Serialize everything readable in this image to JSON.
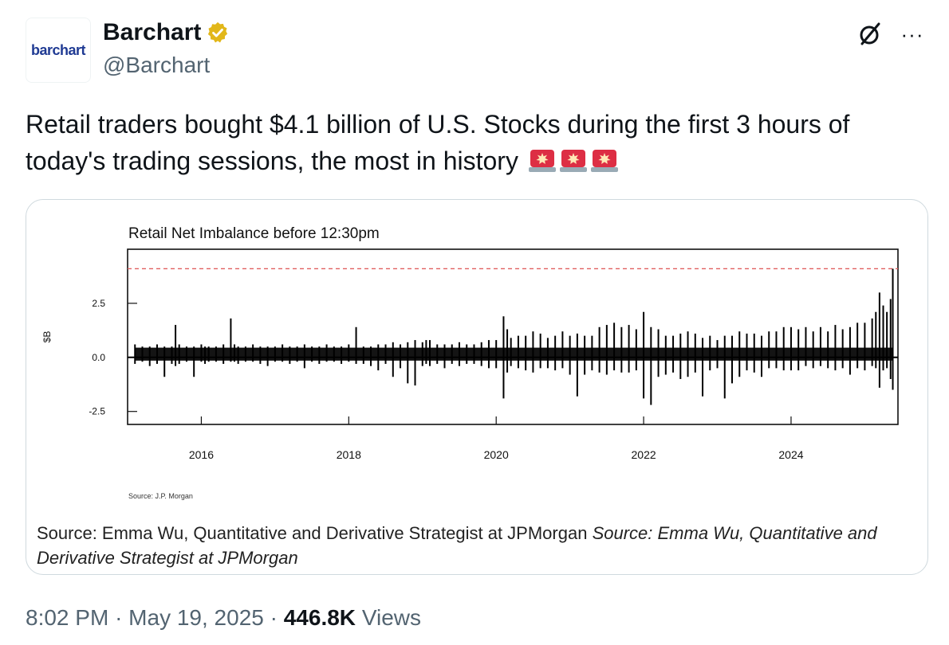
{
  "author": {
    "avatar_text": "barchart",
    "display_name": "Barchart",
    "handle": "@Barchart",
    "verified_badge_icon": "verified-gold-badge-icon",
    "verified_color": "#e2b719"
  },
  "actions": {
    "grok_icon": "grok-icon",
    "more_icon": "more-icon",
    "more_label": "···"
  },
  "tweet": {
    "text": "Retail traders bought $4.1 billion of U.S. Stocks during the first 3 hours of today's trading sessions, the most in history",
    "emoji_icon": "police-siren-emoji-icon",
    "emoji_count": 3
  },
  "media": {
    "caption_plain": "Source: Emma Wu, Quantitative and Derivative Strategist at JPMorgan ",
    "caption_italic": "Source: Emma Wu, Quantitative and Derivative Strategist at JPMorgan"
  },
  "chart_data": {
    "type": "bar",
    "title": "Retail Net Imbalance before 12:30pm",
    "ylabel": "$B",
    "xlabel": "",
    "source_note": "Source: J.P. Morgan",
    "xlim": [
      2015.0,
      2025.45
    ],
    "ylim": [
      -3.1,
      5.0
    ],
    "x_ticks": [
      2016,
      2018,
      2020,
      2022,
      2024
    ],
    "x_tick_labels": [
      "2016",
      "2018",
      "2020",
      "2022",
      "2024"
    ],
    "y_ticks": [
      -2.5,
      0.0,
      2.5
    ],
    "y_tick_labels": [
      "-2.5",
      "0.0",
      "2.5"
    ],
    "reference_line": {
      "value": 4.1,
      "style": "dashed",
      "color": "#e06060"
    },
    "baseline": 0.0,
    "grid": false,
    "series": [
      {
        "color": "#000000",
        "x": [
          2015.1,
          2015.2,
          2015.3,
          2015.4,
          2015.5,
          2015.6,
          2015.65,
          2015.7,
          2015.8,
          2015.9,
          2016.0,
          2016.05,
          2016.1,
          2016.2,
          2016.3,
          2016.4,
          2016.45,
          2016.5,
          2016.6,
          2016.7,
          2016.8,
          2016.9,
          2017.0,
          2017.1,
          2017.2,
          2017.3,
          2017.4,
          2017.5,
          2017.6,
          2017.7,
          2017.8,
          2017.9,
          2018.0,
          2018.1,
          2018.2,
          2018.3,
          2018.4,
          2018.5,
          2018.6,
          2018.7,
          2018.8,
          2018.9,
          2019.0,
          2019.05,
          2019.1,
          2019.2,
          2019.3,
          2019.4,
          2019.5,
          2019.6,
          2019.7,
          2019.8,
          2019.9,
          2020.0,
          2020.1,
          2020.15,
          2020.2,
          2020.3,
          2020.4,
          2020.5,
          2020.6,
          2020.7,
          2020.8,
          2020.9,
          2021.0,
          2021.1,
          2021.2,
          2021.3,
          2021.4,
          2021.5,
          2021.6,
          2021.7,
          2021.8,
          2021.9,
          2022.0,
          2022.1,
          2022.2,
          2022.3,
          2022.4,
          2022.5,
          2022.6,
          2022.7,
          2022.8,
          2022.9,
          2023.0,
          2023.1,
          2023.2,
          2023.3,
          2023.4,
          2023.5,
          2023.6,
          2023.7,
          2023.8,
          2023.9,
          2024.0,
          2024.1,
          2024.2,
          2024.3,
          2024.4,
          2024.5,
          2024.6,
          2024.7,
          2024.8,
          2024.9,
          2025.0,
          2025.1,
          2025.15,
          2025.2,
          2025.25,
          2025.3,
          2025.35,
          2025.38
        ],
        "high": [
          0.6,
          0.5,
          0.5,
          0.6,
          0.5,
          0.5,
          1.5,
          0.6,
          0.5,
          0.5,
          0.6,
          0.5,
          0.5,
          0.5,
          0.6,
          1.8,
          0.6,
          0.5,
          0.5,
          0.6,
          0.5,
          0.5,
          0.5,
          0.6,
          0.5,
          0.5,
          0.6,
          0.5,
          0.5,
          0.6,
          0.5,
          0.5,
          0.6,
          1.4,
          0.5,
          0.5,
          0.6,
          0.6,
          0.7,
          0.6,
          0.7,
          0.8,
          0.7,
          0.8,
          0.8,
          0.6,
          0.6,
          0.6,
          0.7,
          0.6,
          0.6,
          0.7,
          0.8,
          0.8,
          1.9,
          1.3,
          0.9,
          1.0,
          1.0,
          1.2,
          1.1,
          0.9,
          1.0,
          1.2,
          1.0,
          1.1,
          1.0,
          1.0,
          1.4,
          1.5,
          1.6,
          1.4,
          1.5,
          1.3,
          2.1,
          1.4,
          1.3,
          1.0,
          1.0,
          1.1,
          1.2,
          1.1,
          0.9,
          1.0,
          0.8,
          1.0,
          1.0,
          1.2,
          1.1,
          1.1,
          1.0,
          1.2,
          1.2,
          1.4,
          1.4,
          1.3,
          1.4,
          1.2,
          1.4,
          1.2,
          1.5,
          1.3,
          1.4,
          1.6,
          1.6,
          1.8,
          2.1,
          3.0,
          2.4,
          2.1,
          2.7,
          4.1
        ],
        "low": [
          -0.3,
          -0.2,
          -0.4,
          -0.3,
          -0.9,
          -0.3,
          -0.4,
          -0.3,
          -0.2,
          -0.9,
          -0.2,
          -0.3,
          -0.2,
          -0.2,
          -0.3,
          -0.2,
          -0.2,
          -0.3,
          -0.2,
          -0.2,
          -0.3,
          -0.4,
          -0.2,
          -0.2,
          -0.3,
          -0.2,
          -0.5,
          -0.2,
          -0.3,
          -0.2,
          -0.2,
          -0.3,
          -0.2,
          -0.3,
          -0.3,
          -0.4,
          -0.6,
          -0.3,
          -0.9,
          -0.5,
          -1.2,
          -1.3,
          -0.4,
          -0.3,
          -0.4,
          -0.3,
          -0.5,
          -0.3,
          -0.4,
          -0.3,
          -0.3,
          -0.4,
          -0.5,
          -0.5,
          -1.9,
          -0.7,
          -0.4,
          -0.5,
          -0.6,
          -0.7,
          -0.5,
          -0.5,
          -0.6,
          -0.5,
          -0.8,
          -1.8,
          -0.8,
          -0.6,
          -0.7,
          -0.8,
          -0.6,
          -0.7,
          -0.7,
          -0.6,
          -1.9,
          -2.2,
          -0.9,
          -0.8,
          -0.7,
          -1.0,
          -0.9,
          -0.7,
          -1.8,
          -0.6,
          -0.5,
          -1.9,
          -1.2,
          -0.9,
          -0.6,
          -0.7,
          -0.9,
          -0.5,
          -0.5,
          -0.6,
          -0.6,
          -0.6,
          -0.4,
          -0.5,
          -0.4,
          -0.5,
          -0.6,
          -0.5,
          -0.8,
          -0.5,
          -0.6,
          -0.4,
          -0.5,
          -1.4,
          -0.6,
          -0.5,
          -1.0,
          -1.5
        ]
      }
    ]
  },
  "footer": {
    "time": "8:02 PM",
    "date": "May 19, 2025",
    "separator": "·",
    "views_count": "446.8K",
    "views_label": "Views"
  }
}
